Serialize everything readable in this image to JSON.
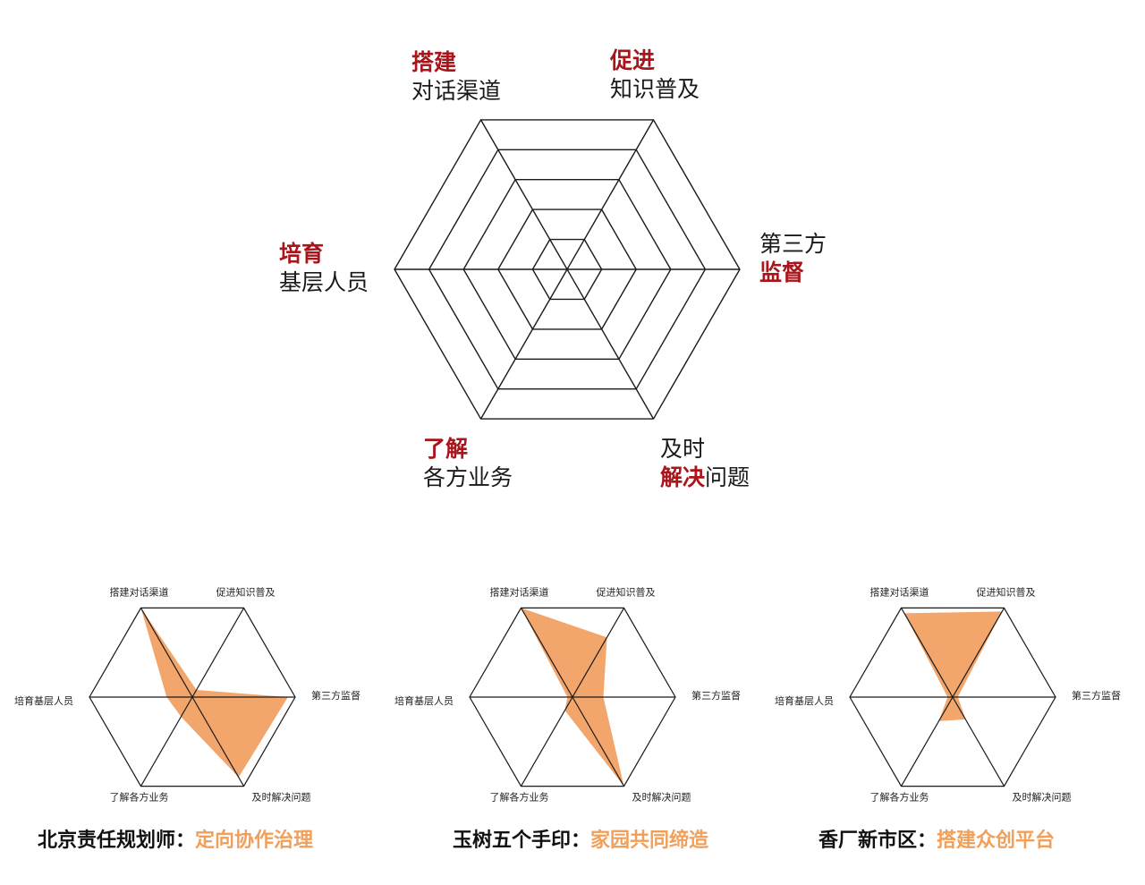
{
  "colors": {
    "highlight": "#a8151b",
    "fill": "#f2a66b",
    "accent": "#f0a05a",
    "line": "#1a1a1a"
  },
  "main_radar": {
    "labels": [
      {
        "key": "promote",
        "lines": [
          [
            {
              "t": "促进",
              "hl": true
            }
          ],
          [
            {
              "t": "知识普及",
              "hl": false
            }
          ]
        ]
      },
      {
        "key": "supervise",
        "lines": [
          [
            {
              "t": "第三方",
              "hl": false
            }
          ],
          [
            {
              "t": "监督",
              "hl": true
            }
          ]
        ]
      },
      {
        "key": "solve",
        "lines": [
          [
            {
              "t": "及时",
              "hl": false
            }
          ],
          [
            {
              "t": "解决",
              "hl": true
            },
            {
              "t": "问题",
              "hl": false
            }
          ]
        ]
      },
      {
        "key": "understand",
        "lines": [
          [
            {
              "t": "了解",
              "hl": true
            }
          ],
          [
            {
              "t": "各方业务",
              "hl": false
            }
          ]
        ]
      },
      {
        "key": "train",
        "lines": [
          [
            {
              "t": "培育",
              "hl": true
            }
          ],
          [
            {
              "t": "基层人员",
              "hl": false
            }
          ]
        ]
      },
      {
        "key": "channel",
        "lines": [
          [
            {
              "t": "搭建",
              "hl": true
            }
          ],
          [
            {
              "t": "对话渠道",
              "hl": false
            }
          ]
        ]
      }
    ]
  },
  "chart_data": [
    {
      "type": "radar",
      "axes": [
        "搭建对话渠道",
        "促进知识普及",
        "第三方监督",
        "及时解决问题",
        "了解各方业务",
        "培育基层人员"
      ],
      "scale": [
        0,
        1
      ],
      "series": [
        {
          "values": [
            1.0,
            0.08,
            0.93,
            0.9,
            0.22,
            0.25
          ]
        }
      ],
      "caption_prefix": "北京责任规划师：",
      "caption_accent": "定向协作治理"
    },
    {
      "type": "radar",
      "axes": [
        "搭建对话渠道",
        "促进知识普及",
        "第三方监督",
        "及时解决问题",
        "了解各方业务",
        "培育基层人员"
      ],
      "scale": [
        0,
        1
      ],
      "series": [
        {
          "values": [
            1.0,
            0.67,
            0.3,
            1.0,
            0.15,
            0.05
          ]
        }
      ],
      "caption_prefix": "玉树五个手印：",
      "caption_accent": "家园共同缔造"
    },
    {
      "type": "radar",
      "axes": [
        "搭建对话渠道",
        "促进知识普及",
        "第三方监督",
        "及时解决问题",
        "了解各方业务",
        "培育基层人员"
      ],
      "scale": [
        0,
        1
      ],
      "series": [
        {
          "values": [
            0.94,
            0.96,
            0.05,
            0.25,
            0.27,
            0.05
          ]
        }
      ],
      "caption_prefix": "香厂新市区：",
      "caption_accent": "搭建众创平台"
    }
  ]
}
